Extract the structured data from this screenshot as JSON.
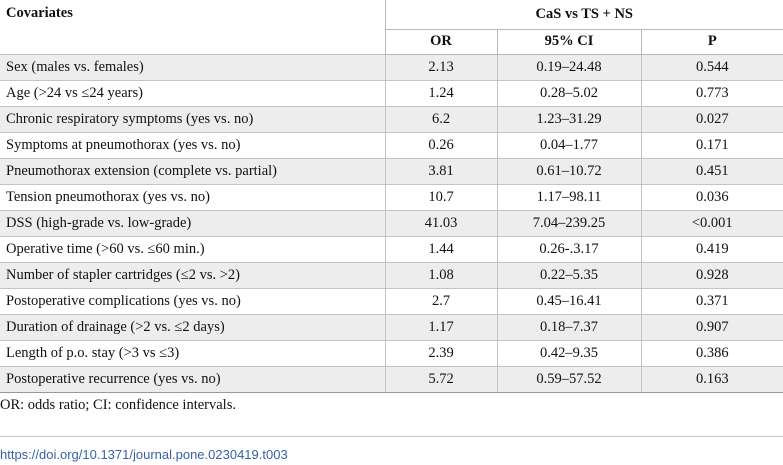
{
  "table": {
    "header": {
      "covariates": "Covariates",
      "group": "CaS vs TS + NS",
      "or": "OR",
      "ci": "95% CI",
      "p": "P"
    },
    "rows": [
      {
        "label": "Sex (males vs. females)",
        "or": "2.13",
        "ci": "0.19–24.48",
        "p": "0.544"
      },
      {
        "label": "Age (>24 vs ≤24 years)",
        "or": "1.24",
        "ci": "0.28–5.02",
        "p": "0.773"
      },
      {
        "label": "Chronic respiratory symptoms (yes vs. no)",
        "or": "6.2",
        "ci": "1.23–31.29",
        "p": "0.027"
      },
      {
        "label": "Symptoms at pneumothorax (yes vs. no)",
        "or": "0.26",
        "ci": "0.04–1.77",
        "p": "0.171"
      },
      {
        "label": "Pneumothorax extension (complete vs. partial)",
        "or": "3.81",
        "ci": "0.61–10.72",
        "p": "0.451"
      },
      {
        "label": "Tension pneumothorax (yes vs. no)",
        "or": "10.7",
        "ci": "1.17–98.11",
        "p": "0.036"
      },
      {
        "label": "DSS (high-grade vs. low-grade)",
        "or": "41.03",
        "ci": "7.04–239.25",
        "p": "<0.001"
      },
      {
        "label": "Operative time (>60 vs. ≤60 min.)",
        "or": "1.44",
        "ci": "0.26-.3.17",
        "p": "0.419"
      },
      {
        "label": "Number of stapler cartridges (≤2 vs. >2)",
        "or": "1.08",
        "ci": "0.22–5.35",
        "p": "0.928"
      },
      {
        "label": "Postoperative complications (yes vs. no)",
        "or": "2.7",
        "ci": "0.45–16.41",
        "p": "0.371"
      },
      {
        "label": "Duration of drainage (>2 vs. ≤2 days)",
        "or": "1.17",
        "ci": "0.18–7.37",
        "p": "0.907"
      },
      {
        "label": "Length of p.o. stay (>3 vs ≤3)",
        "or": "2.39",
        "ci": "0.42–9.35",
        "p": "0.386"
      },
      {
        "label": "Postoperative recurrence (yes vs. no)",
        "or": "5.72",
        "ci": "0.59–57.52",
        "p": "0.163"
      }
    ]
  },
  "footnote": "OR: odds ratio; CI: confidence intervals.",
  "doi": "https://doi.org/10.1371/journal.pone.0230419.t003"
}
